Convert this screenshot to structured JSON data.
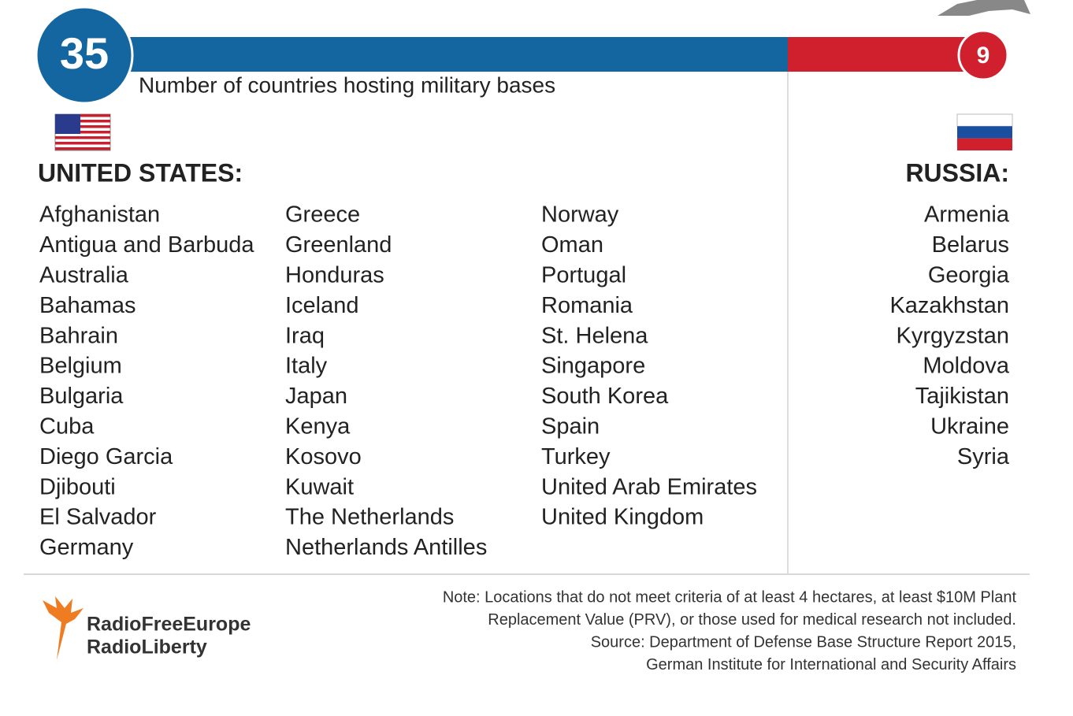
{
  "header": {
    "us_count": 35,
    "russia_count": 9,
    "subtitle": "Number of countries hosting military bases"
  },
  "united_states": {
    "label": "UNITED STATES:",
    "columns": [
      [
        "Afghanistan",
        "Antigua and Barbuda",
        "Australia",
        "Bahamas",
        "Bahrain",
        "Belgium",
        "Bulgaria",
        "Cuba",
        "Diego Garcia",
        "Djibouti",
        "El Salvador",
        "Germany"
      ],
      [
        "Greece",
        "Greenland",
        "Honduras",
        "Iceland",
        "Iraq",
        "Italy",
        "Japan",
        "Kenya",
        "Kosovo",
        "Kuwait",
        "The Netherlands",
        "Netherlands Antilles"
      ],
      [
        "Norway",
        "Oman",
        "Portugal",
        "Romania",
        "St. Helena",
        "Singapore",
        "South Korea",
        "Spain",
        "Turkey",
        "United Arab Emirates",
        "United Kingdom"
      ]
    ]
  },
  "russia": {
    "label": "RUSSIA:",
    "countries": [
      "Armenia",
      "Belarus",
      "Georgia",
      "Kazakhstan",
      "Kyrgyzstan",
      "Moldova",
      "Tajikistan",
      "Ukraine",
      "Syria"
    ]
  },
  "note": [
    "Note: Locations that do not meet criteria of at least 4 hectares, at least $10M Plant",
    "Replacement Value (PRV), or those used for medical research not included.",
    "Source: Department of Defense Base Structure Report 2015,",
    "German Institute for International and Security Affairs"
  ],
  "logo": [
    "RadioFreeEurope",
    "RadioLiberty"
  ]
}
